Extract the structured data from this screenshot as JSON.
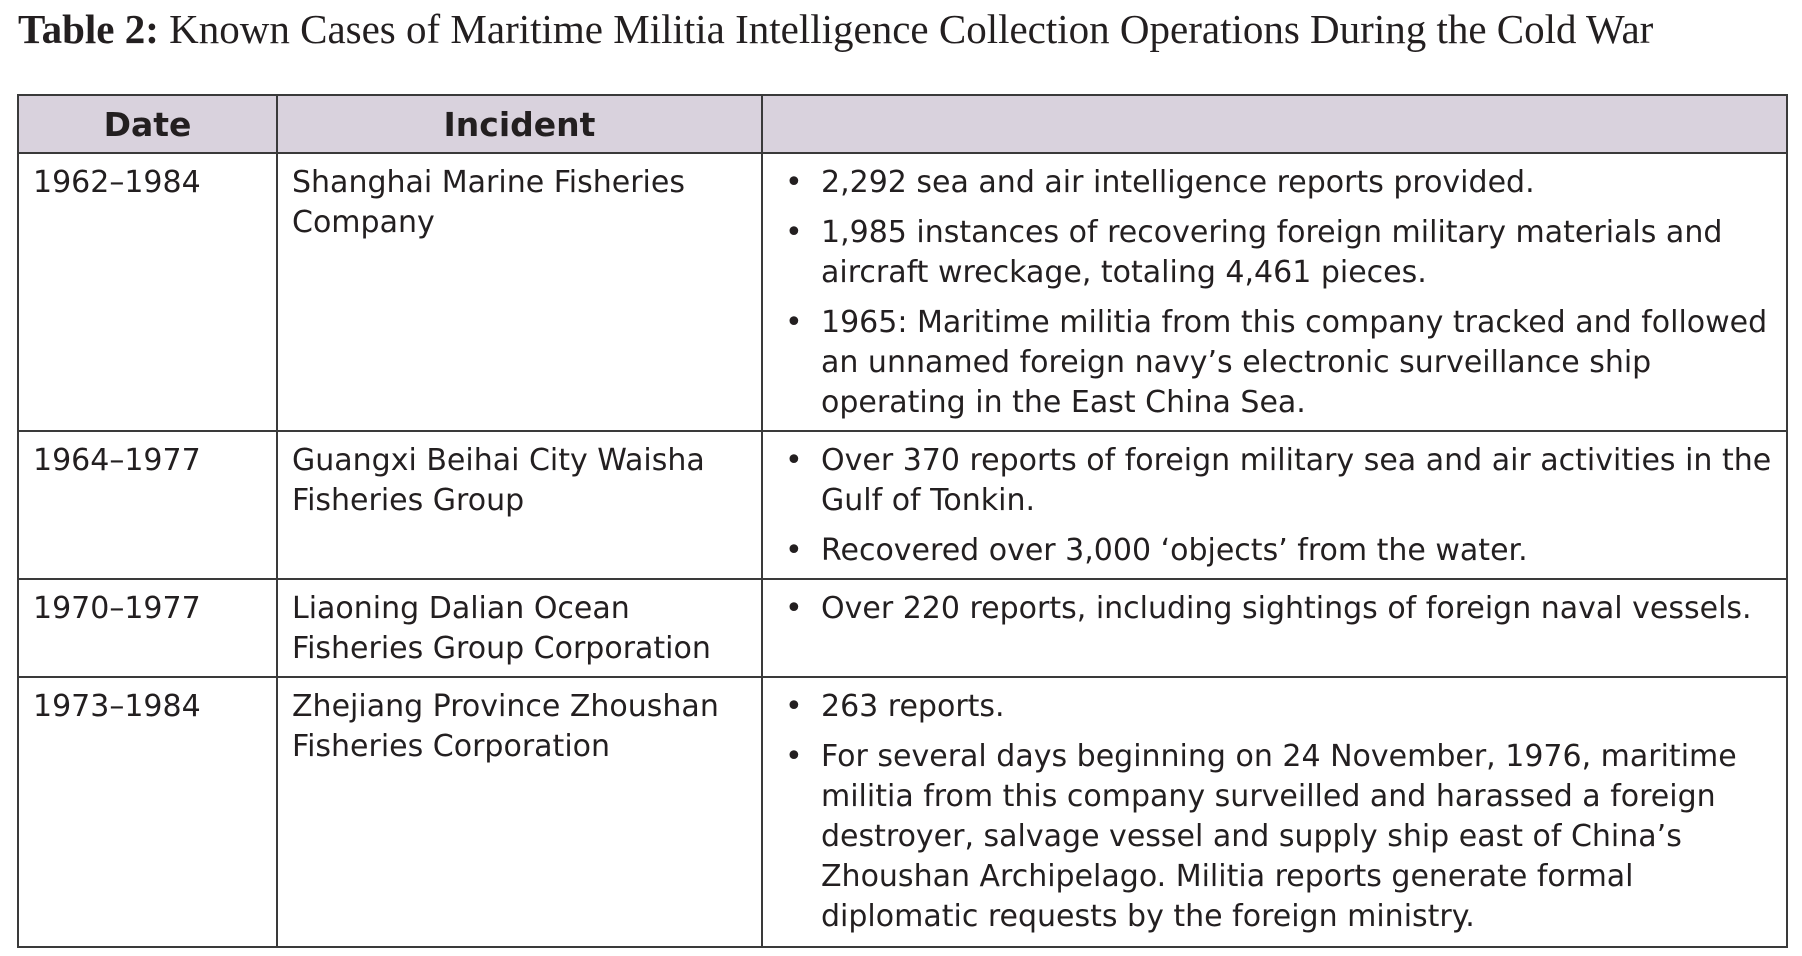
{
  "caption": {
    "lead": "Table 2:",
    "title": "Known Cases of Maritime Militia Intelligence Collection Operations During the Cold War"
  },
  "table": {
    "headers": [
      "Date",
      "Incident",
      ""
    ],
    "bullet_glyph": "•",
    "rows": [
      {
        "date": "1962–1984",
        "incident": "Shanghai Marine Fisheries Company",
        "points": [
          "2,292 sea and air intelligence reports provided.",
          "1,985 instances of recovering foreign military materials and aircraft wreckage, totaling 4,461 pieces.",
          "1965: Maritime militia from this company tracked and followed an unnamed foreign navy’s electronic surveillance ship operating in the East China Sea."
        ]
      },
      {
        "date": "1964–1977",
        "incident": "Guangxi Beihai City Waisha Fisheries Group",
        "points": [
          "Over 370 reports of foreign military sea and air activities in the Gulf of Tonkin.",
          "Recovered over 3,000 ‘objects’ from the water."
        ]
      },
      {
        "date": "1970–1977",
        "incident": "Liaoning Dalian Ocean Fisheries Group Corporation",
        "points": [
          "Over 220 reports, including sightings of foreign naval vessels."
        ]
      },
      {
        "date": "1973–1984",
        "incident": "Zhejiang Province Zhoushan Fisheries Corporation",
        "points": [
          "263 reports.",
          "For several days beginning on 24 November, 1976, maritime militia from this company surveilled and harassed a foreign destroyer, salvage vessel and supply ship east of China’s Zhoushan Archipelago. Militia reports generate formal diplomatic requests by the foreign ministry."
        ]
      }
    ]
  }
}
